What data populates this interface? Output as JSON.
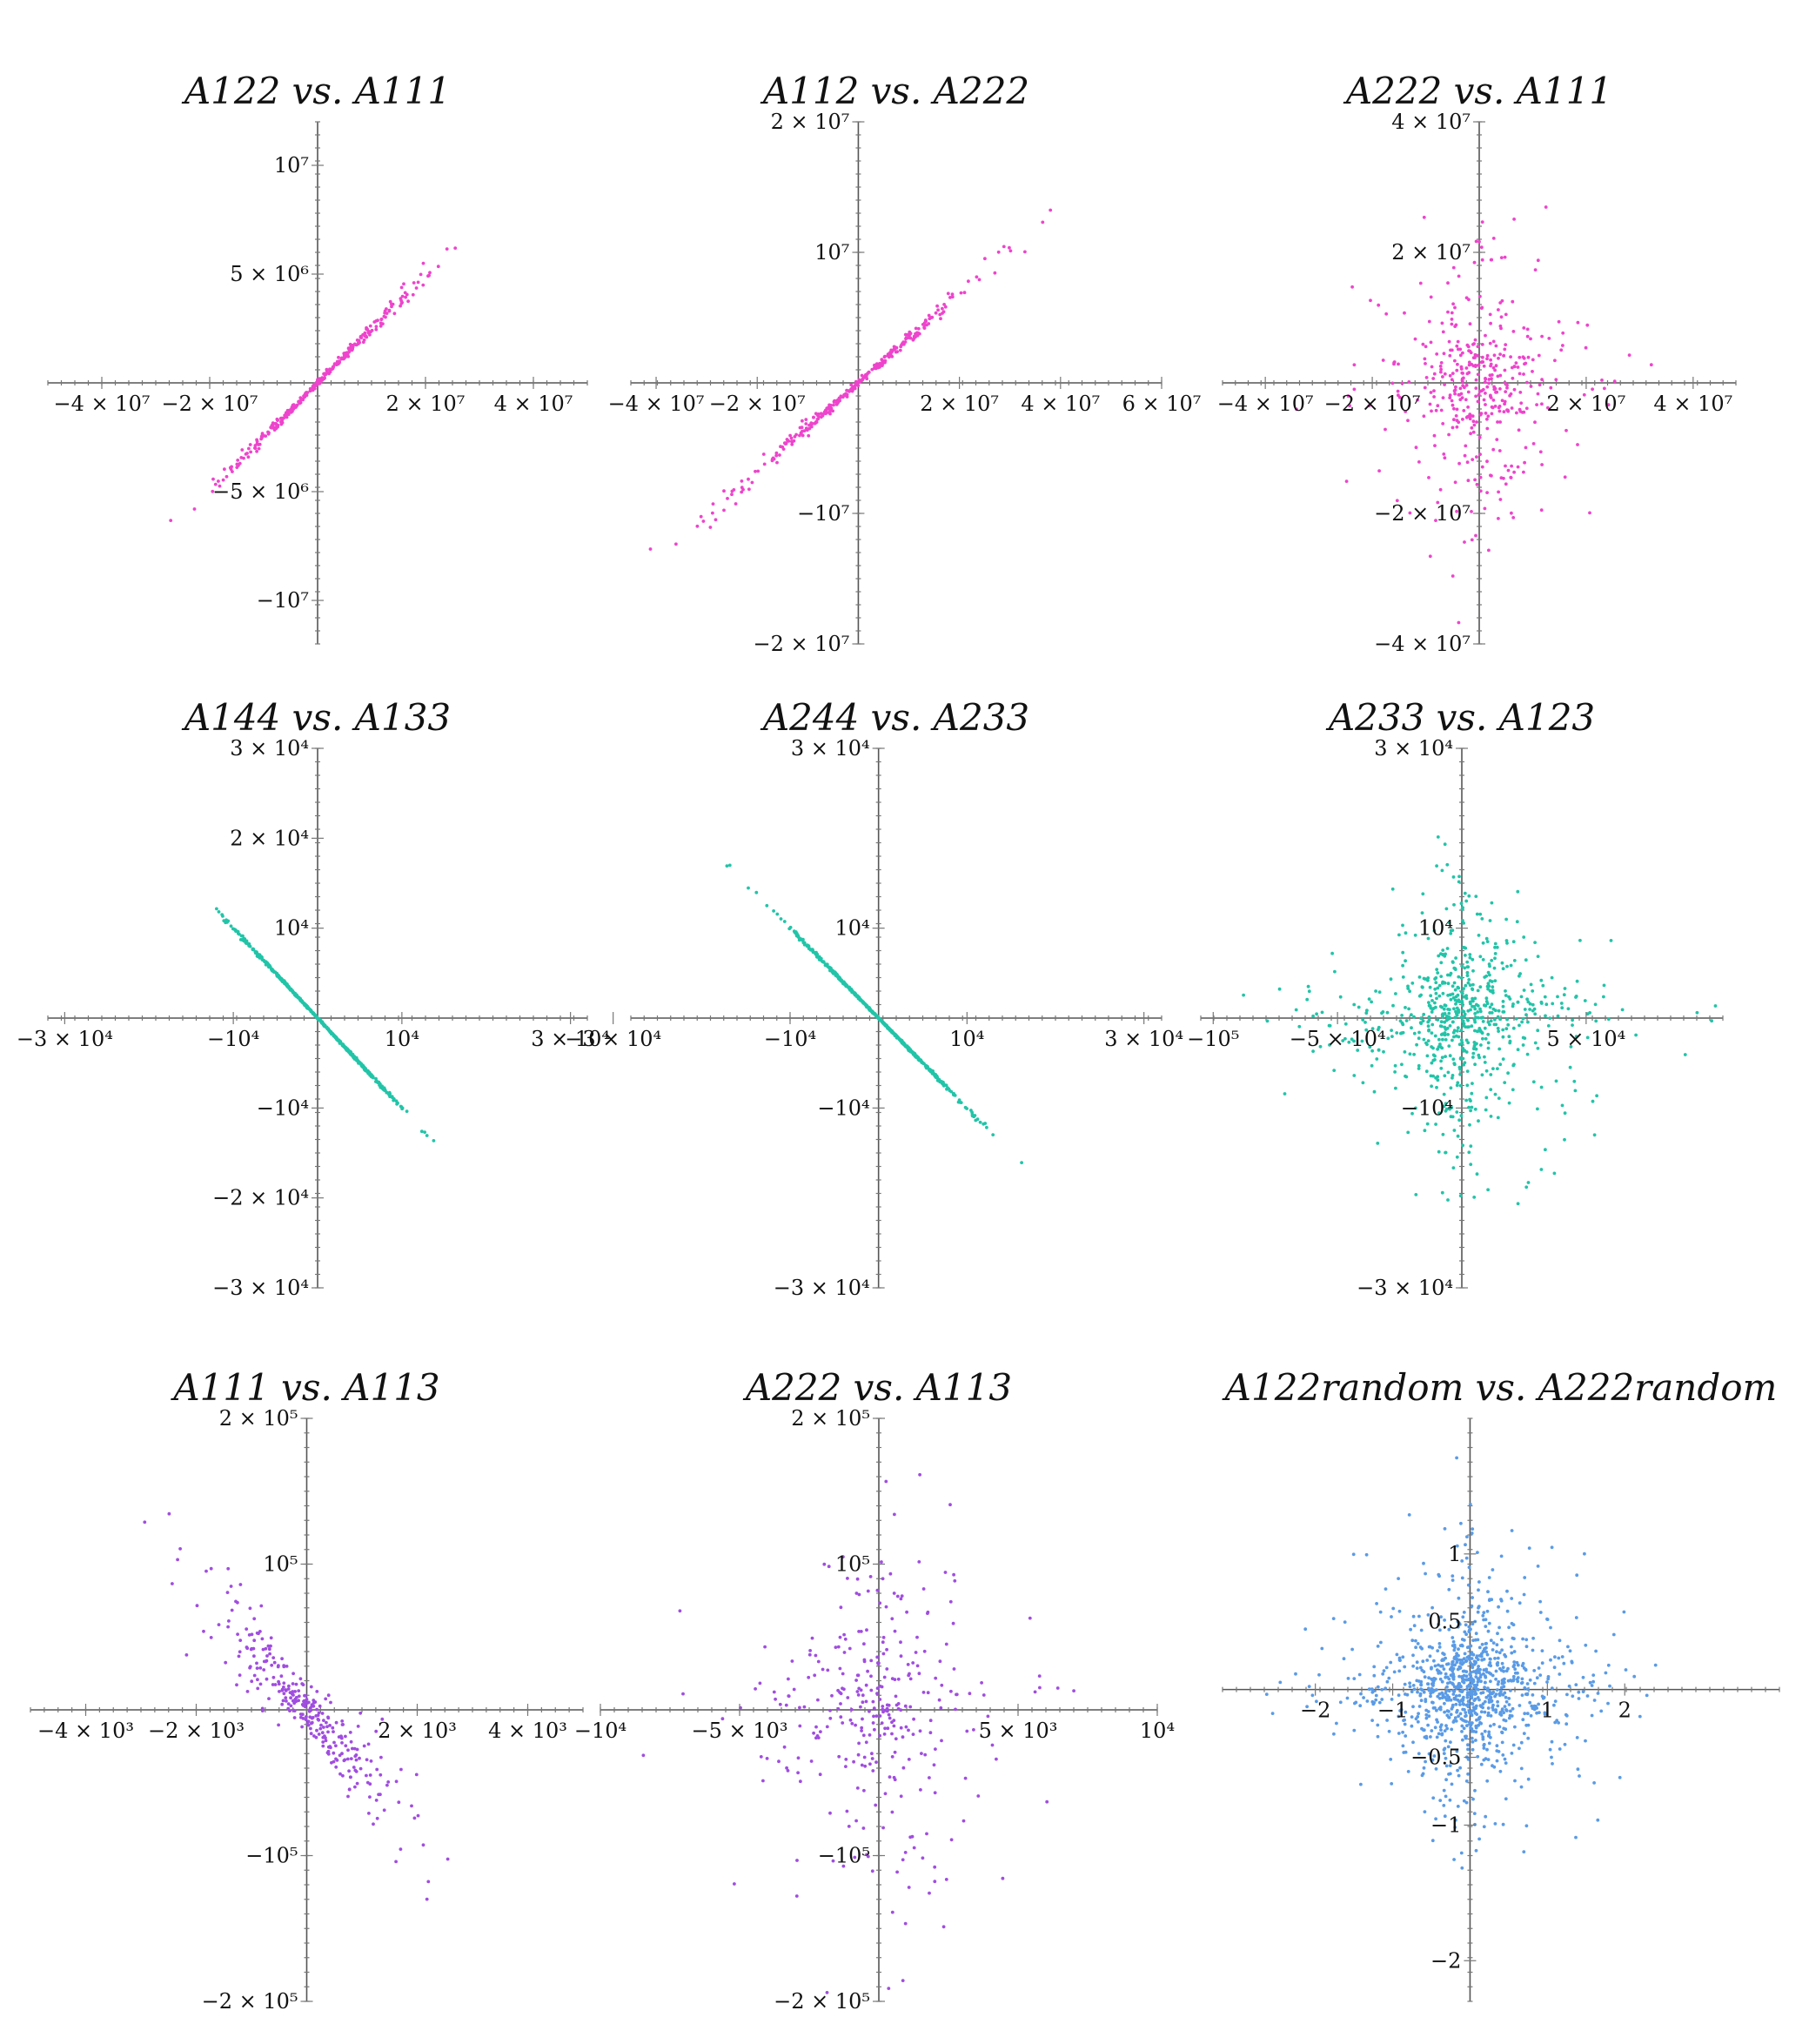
{
  "chart_data": [
    {
      "type": "scatter",
      "title": "A122 vs. A111",
      "color": "#ee44cc",
      "xlim": [
        -50000000,
        50000000
      ],
      "ylim": [
        -12000000,
        12000000
      ],
      "xticks": [
        {
          "v": -40000000,
          "label": "−4 × 10⁷"
        },
        {
          "v": -20000000,
          "label": "−2 × 10⁷"
        },
        {
          "v": 20000000,
          "label": "2 × 10⁷"
        },
        {
          "v": 40000000,
          "label": "4 × 10⁷"
        }
      ],
      "yticks": [
        {
          "v": 10000000,
          "label": "10⁷"
        },
        {
          "v": 5000000,
          "label": "5 × 10⁶"
        },
        {
          "v": -5000000,
          "label": "−5 × 10⁶"
        },
        {
          "v": -10000000,
          "label": "−10⁷"
        }
      ],
      "pattern": "line",
      "slope": 0.25,
      "noise": 0.05,
      "n": 300,
      "spread": 18000000
    },
    {
      "type": "scatter",
      "title": "A112 vs. A222",
      "color": "#ee44cc",
      "xlim": [
        -45000000,
        60000000
      ],
      "ylim": [
        -20000000,
        20000000
      ],
      "xticks": [
        {
          "v": -40000000,
          "label": "−4 × 10⁷"
        },
        {
          "v": -20000000,
          "label": "−2 × 10⁷"
        },
        {
          "v": 20000000,
          "label": "2 × 10⁷"
        },
        {
          "v": 40000000,
          "label": "4 × 10⁷"
        },
        {
          "v": 60000000,
          "label": "6 × 10⁷"
        }
      ],
      "yticks": [
        {
          "v": 20000000,
          "label": "2 × 10⁷"
        },
        {
          "v": 10000000,
          "label": "10⁷"
        },
        {
          "v": -10000000,
          "label": "−10⁷"
        },
        {
          "v": -20000000,
          "label": "−2 × 10⁷"
        }
      ],
      "pattern": "line",
      "slope": 0.34,
      "noise": 0.06,
      "n": 300,
      "spread": 24000000
    },
    {
      "type": "scatter",
      "title": "A222 vs. A111",
      "color": "#ee44cc",
      "xlim": [
        -48000000,
        48000000
      ],
      "ylim": [
        -40000000,
        40000000
      ],
      "xticks": [
        {
          "v": -40000000,
          "label": "−4 × 10⁷"
        },
        {
          "v": -20000000,
          "label": "−2 × 10⁷"
        },
        {
          "v": 20000000,
          "label": "2 × 10⁷"
        },
        {
          "v": 40000000,
          "label": "4 × 10⁷"
        }
      ],
      "yticks": [
        {
          "v": 40000000,
          "label": "4 × 10⁷"
        },
        {
          "v": 20000000,
          "label": "2 × 10⁷"
        },
        {
          "v": -20000000,
          "label": "−2 × 10⁷"
        },
        {
          "v": -40000000,
          "label": "−4 × 10⁷"
        }
      ],
      "pattern": "cloud",
      "n": 420,
      "spread": 12000000
    },
    {
      "type": "scatter",
      "title": "A144 vs. A133",
      "color": "#22c4a8",
      "xlim": [
        -30000000000000,
        30000000000000
      ],
      "ylim": [
        -30000,
        30000
      ],
      "xticks": [
        {
          "v": -30000,
          "label": "−3 × 10⁴"
        },
        {
          "v": -10000,
          "label": "−10⁴"
        },
        {
          "v": 10000,
          "label": "10⁴"
        },
        {
          "v": 30000,
          "label": "3 × 10⁴"
        }
      ],
      "yticks": [
        {
          "v": 30000,
          "label": "3 × 10⁴"
        },
        {
          "v": 20000,
          "label": "2 × 10⁴"
        },
        {
          "v": 10000,
          "label": "10⁴"
        },
        {
          "v": -10000,
          "label": "−10⁴"
        },
        {
          "v": -20000,
          "label": "−2 × 10⁴"
        },
        {
          "v": -30000,
          "label": "−3 × 10⁴"
        }
      ],
      "pattern": "line",
      "slope": -1.0,
      "noise": 0.015,
      "n": 600,
      "spread": 9000
    },
    {
      "type": "scatter",
      "title": "A244 vs. A233",
      "color": "#22c4a8",
      "xlim": [
        -28000,
        32000
      ],
      "ylim": [
        -30000,
        30000
      ],
      "xticks": [
        {
          "v": -30000,
          "label": "−3 × 10⁴"
        },
        {
          "v": -10000,
          "label": "−10⁴"
        },
        {
          "v": 10000,
          "label": "10⁴"
        },
        {
          "v": 30000,
          "label": "3 × 10⁴"
        }
      ],
      "yticks": [
        {
          "v": 30000,
          "label": "3 × 10⁴"
        },
        {
          "v": 10000,
          "label": "10⁴"
        },
        {
          "v": -10000,
          "label": "−10⁴"
        },
        {
          "v": -30000,
          "label": "−3 × 10⁴"
        }
      ],
      "pattern": "line",
      "slope": -1.0,
      "noise": 0.015,
      "n": 600,
      "spread": 9000
    },
    {
      "type": "scatter",
      "title": "A233 vs. A123",
      "color": "#22c4a8",
      "xlim": [
        -105000,
        105000
      ],
      "ylim": [
        -30000,
        30000
      ],
      "xticks": [
        {
          "v": -100000,
          "label": "−10⁵"
        },
        {
          "v": -50000,
          "label": "−5 × 10⁴"
        },
        {
          "v": 50000,
          "label": "5 × 10⁴"
        }
      ],
      "yticks": [
        {
          "v": 30000,
          "label": "3 × 10⁴"
        },
        {
          "v": 10000,
          "label": "10⁴"
        },
        {
          "v": -10000,
          "label": "−10⁴"
        },
        {
          "v": -30000,
          "label": "−3 × 10⁴"
        }
      ],
      "pattern": "cloud",
      "n": 700,
      "spread": 30000,
      "yspread": 8000
    },
    {
      "type": "scatter",
      "title": "A111 vs. A113",
      "color": "#a04de0",
      "xlim": [
        -5000,
        5000
      ],
      "ylim": [
        -200000,
        200000
      ],
      "xticks": [
        {
          "v": -4000,
          "label": "−4 × 10³"
        },
        {
          "v": -2000,
          "label": "−2 × 10³"
        },
        {
          "v": 2000,
          "label": "2 × 10³"
        },
        {
          "v": 4000,
          "label": "4 × 10³"
        }
      ],
      "yticks": [
        {
          "v": 200000,
          "label": "2 × 10⁵"
        },
        {
          "v": 100000,
          "label": "10⁵"
        },
        {
          "v": -100000,
          "label": "−10⁵"
        },
        {
          "v": -200000,
          "label": "−2 × 10⁵"
        }
      ],
      "pattern": "line",
      "slope": -42,
      "noise": 0.35,
      "n": 300,
      "spread": 1700
    },
    {
      "type": "scatter",
      "title": "A222 vs. A113",
      "color": "#a04de0",
      "xlim": [
        -10000,
        10000
      ],
      "ylim": [
        -200000,
        200000
      ],
      "xticks": [
        {
          "v": -10000,
          "label": "−10⁴"
        },
        {
          "v": -5000,
          "label": "−5 × 10³"
        },
        {
          "v": 5000,
          "label": "5 × 10³"
        },
        {
          "v": 10000,
          "label": "10⁴"
        }
      ],
      "yticks": [
        {
          "v": 200000,
          "label": "2 × 10⁵"
        },
        {
          "v": 100000,
          "label": "10⁵"
        },
        {
          "v": -100000,
          "label": "−10⁵"
        },
        {
          "v": -200000,
          "label": "−2 × 10⁵"
        }
      ],
      "pattern": "cloud",
      "n": 320,
      "spread": 2800,
      "yspread": 75000
    },
    {
      "type": "scatter",
      "title": "A122random vs. A222random",
      "color": "#5a9be6",
      "xlim": [
        -3.2,
        4.0
      ],
      "ylim": [
        -2.3,
        2.0
      ],
      "xticks": [
        {
          "v": -2,
          "label": "−2"
        },
        {
          "v": -1,
          "label": "−1"
        },
        {
          "v": 1,
          "label": "1"
        },
        {
          "v": 2,
          "label": "2"
        }
      ],
      "yticks": [
        {
          "v": 1,
          "label": "1"
        },
        {
          "v": 0.5,
          "label": "0.5"
        },
        {
          "v": -0.5,
          "label": "−0.5"
        },
        {
          "v": -1,
          "label": "−1"
        },
        {
          "v": -2,
          "label": "−2"
        }
      ],
      "pattern": "cloud",
      "n": 1000,
      "spread": 0.95,
      "yspread": 0.55
    }
  ]
}
